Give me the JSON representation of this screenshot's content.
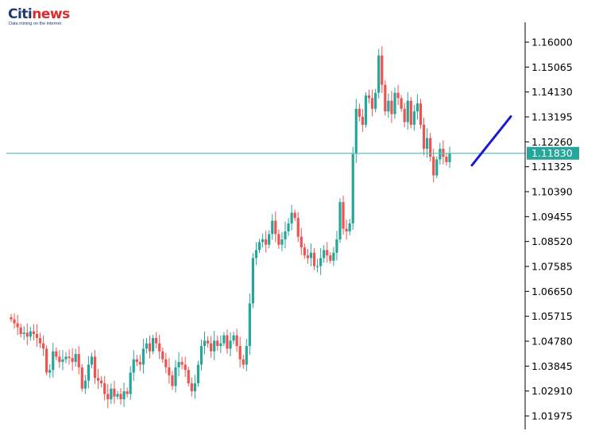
{
  "logo": {
    "brand_left": "Citi",
    "brand_right": "news",
    "tagline": "Data mining on the internet"
  },
  "colors": {
    "bull": "#26a69a",
    "bear": "#ef5350",
    "price_line": "#5fbfb8",
    "price_tag_bg": "#26a69a",
    "arrow": "#1a1ad6",
    "axis": "#000000"
  },
  "chart_data": {
    "type": "candlestick",
    "title": "",
    "xlabel": "",
    "ylabel": "",
    "ylim": [
      1.015,
      1.167
    ],
    "y_ticks": [
      "1.16000",
      "1.15065",
      "1.14130",
      "1.13195",
      "1.12260",
      "1.11325",
      "1.10390",
      "1.09455",
      "1.08520",
      "1.07585",
      "1.06650",
      "1.05715",
      "1.04780",
      "1.03845",
      "1.02910",
      "1.01975"
    ],
    "current_price": 1.1183,
    "current_price_label": "1.11830",
    "forecast_arrow": {
      "from": [
        1.1138
      ],
      "to": [
        1.1321
      ],
      "direction": "up"
    },
    "close": [
      1.056,
      1.0545,
      1.053,
      1.0505,
      1.051,
      1.0495,
      1.0515,
      1.0505,
      1.049,
      1.047,
      1.045,
      1.036,
      1.037,
      1.044,
      1.042,
      1.04,
      1.041,
      1.042,
      1.0415,
      1.04,
      1.043,
      1.038,
      1.03,
      1.033,
      1.039,
      1.042,
      1.034,
      1.033,
      1.032,
      1.028,
      1.026,
      1.03,
      1.027,
      1.028,
      1.026,
      1.029,
      1.028,
      1.036,
      1.041,
      1.04,
      1.039,
      1.045,
      1.047,
      1.044,
      1.049,
      1.047,
      1.044,
      1.041,
      1.038,
      1.035,
      1.031,
      1.038,
      1.04,
      1.039,
      1.037,
      1.032,
      1.029,
      1.032,
      1.039,
      1.046,
      1.048,
      1.047,
      1.044,
      1.048,
      1.046,
      1.047,
      1.05,
      1.045,
      1.048,
      1.05,
      1.046,
      1.041,
      1.039,
      1.046,
      1.062,
      1.079,
      1.082,
      1.085,
      1.086,
      1.084,
      1.088,
      1.093,
      1.088,
      1.084,
      1.086,
      1.089,
      1.092,
      1.096,
      1.094,
      1.087,
      1.083,
      1.08,
      1.079,
      1.081,
      1.076,
      1.076,
      1.079,
      1.082,
      1.08,
      1.078,
      1.081,
      1.086,
      1.1,
      1.09,
      1.089,
      1.092,
      1.118,
      1.135,
      1.132,
      1.129,
      1.14,
      1.139,
      1.135,
      1.141,
      1.155,
      1.144,
      1.134,
      1.138,
      1.133,
      1.141,
      1.139,
      1.135,
      1.13,
      1.138,
      1.129,
      1.134,
      1.137,
      1.129,
      1.12,
      1.124,
      1.117,
      1.11,
      1.116,
      1.12,
      1.117,
      1.115,
      1.1183
    ]
  }
}
